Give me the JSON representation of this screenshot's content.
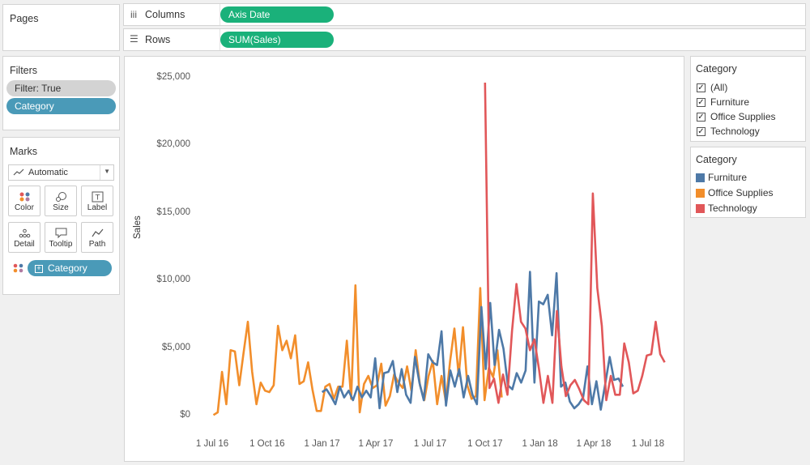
{
  "pages": {
    "title": "Pages"
  },
  "shelves": {
    "columns": {
      "label": "Columns",
      "pill": "Axis Date"
    },
    "rows": {
      "label": "Rows",
      "pill": "SUM(Sales)"
    }
  },
  "filters": {
    "title": "Filters",
    "items": [
      "Filter: True",
      "Category"
    ]
  },
  "marks": {
    "title": "Marks",
    "mark_type": "Automatic",
    "buttons": [
      "Color",
      "Size",
      "Label",
      "Detail",
      "Tooltip",
      "Path"
    ],
    "color_pill": "Category"
  },
  "filter_card": {
    "title": "Category",
    "items": [
      "(All)",
      "Furniture",
      "Office Supplies",
      "Technology"
    ]
  },
  "legend": {
    "title": "Category",
    "items": [
      {
        "label": "Furniture",
        "color": "#4e79a7"
      },
      {
        "label": "Office Supplies",
        "color": "#f28e2b"
      },
      {
        "label": "Technology",
        "color": "#e15759"
      }
    ]
  },
  "colors": {
    "accent_green": "#1ab17a",
    "pill_blue": "#4a9ab8",
    "pill_gray": "#d3d3d3"
  },
  "chart_data": {
    "type": "line",
    "xlabel": "",
    "ylabel": "Sales",
    "y_ticks": [
      "$0",
      "$5,000",
      "$10,000",
      "$15,000",
      "$20,000",
      "$25,000"
    ],
    "ylim": [
      0,
      25000
    ],
    "x_ticks": [
      "1 Jul 16",
      "1 Oct 16",
      "1 Jan 17",
      "1 Apr 17",
      "1 Jul 17",
      "1 Oct 17",
      "1 Jan 18",
      "1 Apr 18",
      "1 Jul 18"
    ],
    "x_tick_dates": [
      "2016-07-01",
      "2016-10-01",
      "2017-01-01",
      "2017-04-01",
      "2017-07-01",
      "2017-10-01",
      "2018-01-01",
      "2018-04-01",
      "2018-07-01"
    ],
    "series": [
      {
        "name": "Office Supplies",
        "x_start": "2016-07-03",
        "x_end": "2017-10-29",
        "values": [
          100,
          300,
          3300,
          900,
          4900,
          4800,
          2300,
          4700,
          7000,
          3300,
          900,
          2500,
          1900,
          1800,
          2300,
          6700,
          4900,
          5600,
          4300,
          6000,
          2400,
          2600,
          4000,
          2000,
          400,
          400,
          2200,
          2400,
          1300,
          2200,
          2200,
          5600,
          1300,
          9700,
          300,
          2400,
          3000,
          2100,
          2300,
          3900,
          800,
          1500,
          3100,
          2500,
          2100,
          3700,
          1900,
          4900,
          2300,
          1200,
          3000,
          4100,
          900,
          3000,
          1100,
          4100,
          6500,
          3000,
          6600,
          2300,
          1300,
          1500,
          9500,
          1200,
          3600,
          2900,
          4900,
          1400
        ]
      },
      {
        "name": "Furniture",
        "x_start": "2017-01-01",
        "x_end": "2018-05-20",
        "values": [
          1800,
          2000,
          1500,
          900,
          2200,
          1400,
          1900,
          1200,
          2200,
          1400,
          1900,
          1400,
          4300,
          600,
          3200,
          3300,
          4100,
          1800,
          3500,
          1600,
          1000,
          4400,
          2500,
          1200,
          4600,
          4000,
          3800,
          6300,
          800,
          3400,
          2200,
          3500,
          1400,
          3000,
          1600,
          900,
          8100,
          3500,
          8400,
          3800,
          6400,
          5000,
          2300,
          2000,
          3200,
          2500,
          3400,
          10700,
          2500,
          8500,
          8300,
          9000,
          6000,
          10600,
          2200,
          2500,
          1100,
          600,
          900,
          1400,
          3700,
          900,
          2600,
          500,
          2400,
          4400,
          2700,
          2800,
          2200
        ]
      },
      {
        "name": "Technology",
        "x_start": "2017-10-01",
        "x_end": "2018-07-29",
        "values": [
          24700,
          2100,
          2800,
          1000,
          3100,
          1600,
          6300,
          9800,
          7000,
          6500,
          4900,
          5700,
          3500,
          1000,
          3000,
          1000,
          7800,
          3700,
          1500,
          2300,
          2700,
          2000,
          1200,
          900,
          16500,
          9500,
          6700,
          1200,
          3000,
          1600,
          1600,
          5400,
          4000,
          1700,
          1900,
          3000,
          4500,
          4600,
          7000,
          4600,
          4000
        ]
      }
    ],
    "legend_position": "right",
    "grid": false
  }
}
